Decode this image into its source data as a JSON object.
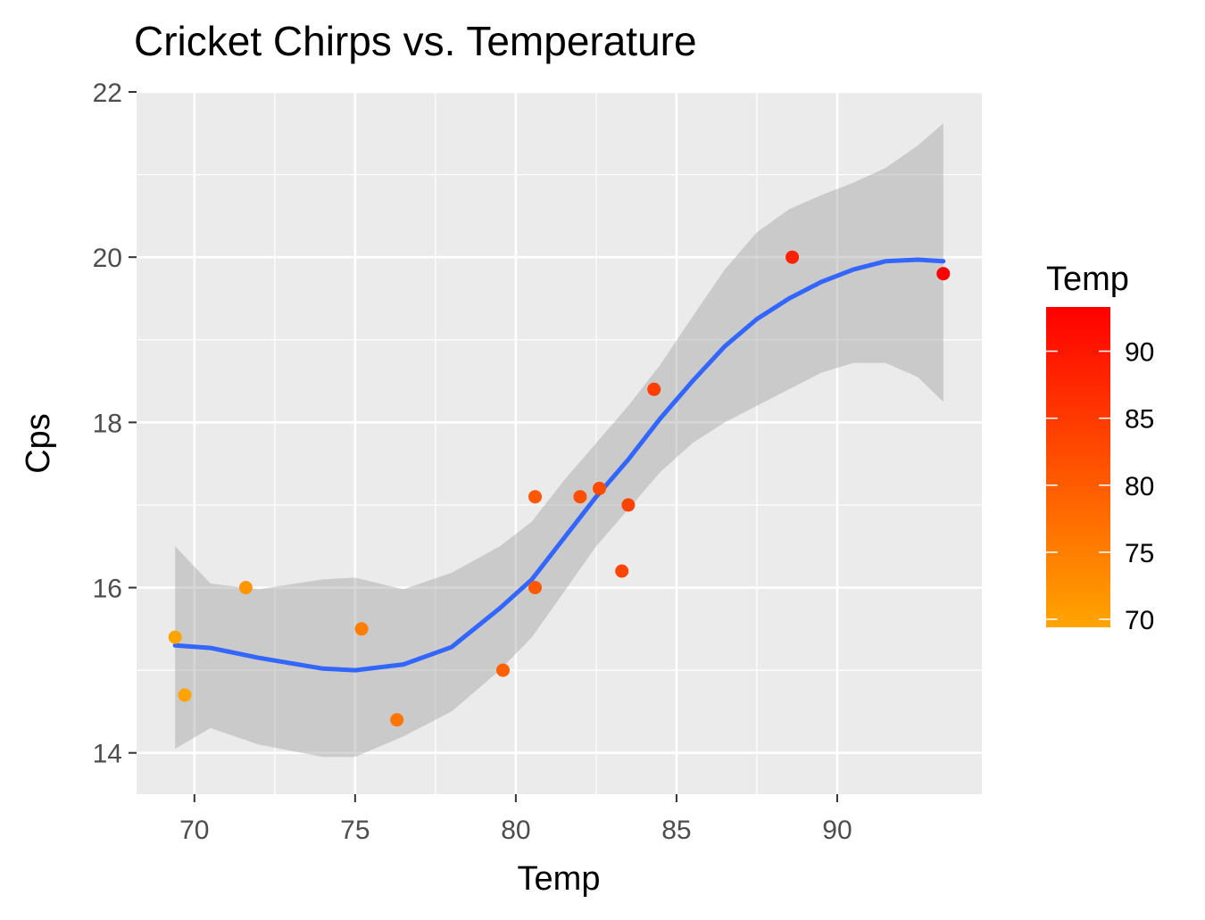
{
  "chart_data": {
    "type": "scatter",
    "title": "Cricket Chirps vs. Temperature",
    "xlabel": "Temp",
    "ylabel": "Cps",
    "xlim": [
      68.2,
      94.5
    ],
    "ylim": [
      13.5,
      22.0
    ],
    "x_ticks": [
      70,
      75,
      80,
      85,
      90
    ],
    "y_ticks": [
      14,
      16,
      18,
      20,
      22
    ],
    "grid": true,
    "panel_background": "#EBEBEB",
    "points": [
      {
        "x": 69.4,
        "y": 15.4
      },
      {
        "x": 69.7,
        "y": 14.7
      },
      {
        "x": 71.6,
        "y": 16.0
      },
      {
        "x": 75.2,
        "y": 15.5
      },
      {
        "x": 76.3,
        "y": 14.4
      },
      {
        "x": 79.6,
        "y": 15.0
      },
      {
        "x": 80.6,
        "y": 17.1
      },
      {
        "x": 80.6,
        "y": 16.0
      },
      {
        "x": 82.0,
        "y": 17.1
      },
      {
        "x": 82.6,
        "y": 17.2
      },
      {
        "x": 83.3,
        "y": 16.2
      },
      {
        "x": 83.5,
        "y": 17.0
      },
      {
        "x": 84.3,
        "y": 18.4
      },
      {
        "x": 88.6,
        "y": 20.0
      },
      {
        "x": 93.3,
        "y": 19.8
      }
    ],
    "smooth": {
      "color": "#3366FF",
      "ribbon_color": "#999999",
      "x": [
        69.4,
        70.5,
        72.0,
        74.0,
        75.0,
        76.5,
        78.0,
        79.5,
        80.5,
        81.5,
        82.5,
        83.5,
        84.5,
        85.5,
        86.5,
        87.5,
        88.5,
        89.5,
        90.5,
        91.5,
        92.5,
        93.3
      ],
      "y": [
        15.3,
        15.27,
        15.15,
        15.02,
        15.0,
        15.07,
        15.28,
        15.75,
        16.1,
        16.6,
        17.1,
        17.55,
        18.05,
        18.5,
        18.92,
        19.25,
        19.5,
        19.7,
        19.85,
        19.95,
        19.97,
        19.95
      ],
      "lower": [
        14.05,
        14.3,
        14.1,
        13.95,
        13.95,
        14.2,
        14.5,
        15.0,
        15.4,
        15.95,
        16.5,
        16.95,
        17.4,
        17.75,
        18.0,
        18.2,
        18.4,
        18.6,
        18.72,
        18.72,
        18.55,
        18.25
      ],
      "upper": [
        16.5,
        16.05,
        15.98,
        16.1,
        16.12,
        15.98,
        16.18,
        16.5,
        16.8,
        17.3,
        17.75,
        18.2,
        18.7,
        19.28,
        19.85,
        20.3,
        20.58,
        20.75,
        20.9,
        21.08,
        21.35,
        21.62
      ]
    },
    "color_scale": {
      "title": "Temp",
      "low_color": "#FFA500",
      "high_color": "#FF0000",
      "range": [
        69.4,
        93.3
      ],
      "ticks": [
        70,
        75,
        80,
        85,
        90
      ]
    }
  }
}
